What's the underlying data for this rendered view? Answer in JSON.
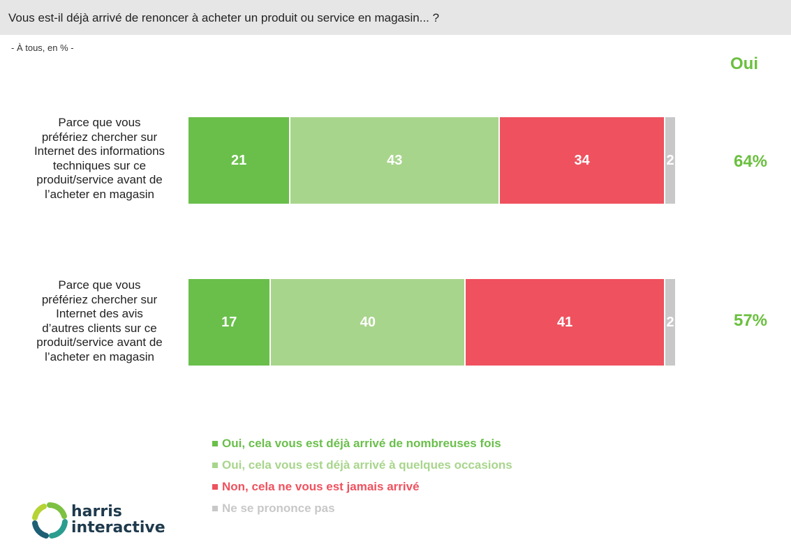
{
  "header": {
    "question": "Vous est-il déjà arrivé de renoncer à acheter un produit ou service en magasin... ?",
    "base": "- À tous, en % -"
  },
  "oui_header": "Oui",
  "chart_data": {
    "type": "bar",
    "orientation": "horizontal",
    "stacked": true,
    "normalized": true,
    "title": "Vous est-il déjà arrivé de renoncer à acheter un produit ou service en magasin... ?",
    "subtitle": "- À tous, en % -",
    "categories": [
      "Parce que vous préfériez chercher sur Internet des informations techniques sur ce produit/service avant de l’acheter en magasin",
      "Parce que vous préfériez chercher sur Internet des avis d’autres clients sur ce produit/service avant de l’acheter en magasin"
    ],
    "series": [
      {
        "name": "Oui, cela vous est déjà arrivé de nombreuses fois",
        "color": "#6abf4b",
        "values": [
          21,
          17
        ]
      },
      {
        "name": "Oui, cela vous est déjà arrivé à quelques occasions",
        "color": "#a8d58c",
        "values": [
          43,
          40
        ]
      },
      {
        "name": "Non, cela ne vous est jamais arrivé",
        "color": "#ef515e",
        "values": [
          34,
          41
        ]
      },
      {
        "name": "Ne se prononce pas",
        "color": "#c8c8c8",
        "values": [
          2,
          2
        ]
      }
    ],
    "totals_label": "Oui",
    "totals": [
      "64%",
      "57%"
    ],
    "legend_position": "bottom",
    "grid": false
  },
  "legend": [
    {
      "label": "Oui, cela vous est déjà arrivé de nombreuses fois",
      "color": "#6abf4b"
    },
    {
      "label": "Oui, cela vous est déjà arrivé à quelques occasions",
      "color": "#a8d58c"
    },
    {
      "label": "Non, cela ne vous est jamais arrivé",
      "color": "#ef515e"
    },
    {
      "label": "Ne se prononce pas",
      "color": "#c8c8c8"
    }
  ],
  "logo": {
    "line1": "harris",
    "line2": "interactive",
    "color": "#1e3a4c"
  }
}
